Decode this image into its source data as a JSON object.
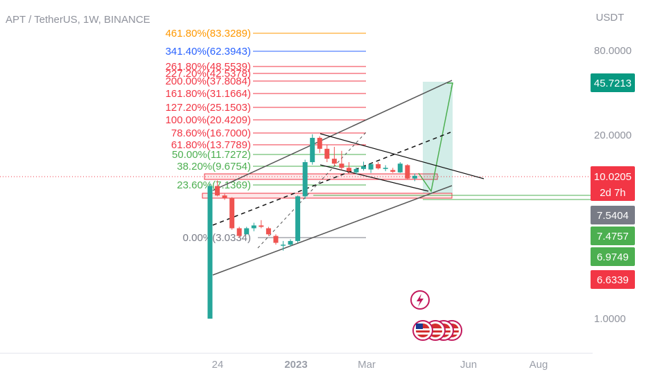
{
  "header": {
    "title": "APT / TetherUS, 1W, BINANCE"
  },
  "y_axis": {
    "currency": "USDT",
    "ticks": [
      {
        "label": "80.0000",
        "value": 80
      },
      {
        "label": "20.0000",
        "value": 20
      },
      {
        "label": "1.0000",
        "value": 1
      }
    ]
  },
  "x_axis": {
    "labels": [
      "24",
      "2023",
      "Mar",
      "Jun",
      "Aug"
    ]
  },
  "price_badges": [
    {
      "label": "45.7213",
      "color": "#089981"
    },
    {
      "label": "10.0205",
      "sublabel": "2d 7h",
      "color": "#f23645"
    },
    {
      "label": "7.5404",
      "color": "#787b86"
    },
    {
      "label": "7.4757",
      "color": "#4caf50"
    },
    {
      "label": "6.9749",
      "color": "#4caf50"
    },
    {
      "label": "6.6339",
      "color": "#f23645"
    }
  ],
  "fibonacci": [
    {
      "label": "461.80%(83.3289)",
      "color": "#ff9800"
    },
    {
      "label": "341.40%(62.3943)",
      "color": "#2962ff"
    },
    {
      "label": "261.80%(48.5539)",
      "color": "#f23645"
    },
    {
      "label": "227.20%(42.5378)",
      "color": "#f23645"
    },
    {
      "label": "200.00%(37.8084)",
      "color": "#f23645"
    },
    {
      "label": "161.80%(31.1664)",
      "color": "#f23645"
    },
    {
      "label": "127.20%(25.1503)",
      "color": "#f23645"
    },
    {
      "label": "100.00%(20.4209)",
      "color": "#f23645"
    },
    {
      "label": "78.60%(16.7000)",
      "color": "#f23645"
    },
    {
      "label": "61.80%(13.7789)",
      "color": "#f23645"
    },
    {
      "label": "50.00%(11.7272)",
      "color": "#4caf50"
    },
    {
      "label": "38.20%(9.6754)",
      "color": "#4caf50"
    },
    {
      "label": "23.60%(7.1369)",
      "color": "#4caf50"
    },
    {
      "label": "0.00%(3.0334)",
      "color": "#787b86"
    }
  ],
  "colors": {
    "up": "#26a69a",
    "down": "#ef5350",
    "grid": "#f0f3fa"
  },
  "chart_data": {
    "type": "candlestick",
    "title": "APT / TetherUS, 1W, BINANCE",
    "ylabel": "USDT",
    "log_scale": true,
    "candles": [
      {
        "o": 1.0,
        "h": 8.9,
        "l": 1.0,
        "c": 8.5
      },
      {
        "o": 8.5,
        "h": 9.3,
        "l": 7.2,
        "c": 7.3
      },
      {
        "o": 7.3,
        "h": 7.5,
        "l": 6.8,
        "c": 7.0
      },
      {
        "o": 7.0,
        "h": 7.1,
        "l": 4.2,
        "c": 4.3
      },
      {
        "o": 4.3,
        "h": 4.4,
        "l": 3.7,
        "c": 3.8
      },
      {
        "o": 3.9,
        "h": 4.4,
        "l": 3.9,
        "c": 4.3
      },
      {
        "o": 4.3,
        "h": 4.7,
        "l": 4.1,
        "c": 4.5
      },
      {
        "o": 4.5,
        "h": 4.9,
        "l": 4.3,
        "c": 4.4
      },
      {
        "o": 4.3,
        "h": 4.4,
        "l": 3.8,
        "c": 3.9
      },
      {
        "o": 3.8,
        "h": 3.9,
        "l": 3.3,
        "c": 3.4
      },
      {
        "o": 3.3,
        "h": 3.5,
        "l": 3.0,
        "c": 3.3
      },
      {
        "o": 3.3,
        "h": 3.6,
        "l": 3.2,
        "c": 3.5
      },
      {
        "o": 3.5,
        "h": 7.3,
        "l": 3.4,
        "c": 7.2
      },
      {
        "o": 7.2,
        "h": 13.0,
        "l": 6.9,
        "c": 12.5
      },
      {
        "o": 12.5,
        "h": 19.6,
        "l": 12.0,
        "c": 18.5
      },
      {
        "o": 18.5,
        "h": 19.0,
        "l": 14.5,
        "c": 15.5
      },
      {
        "o": 15.5,
        "h": 16.5,
        "l": 12.5,
        "c": 13.2
      },
      {
        "o": 13.2,
        "h": 16.0,
        "l": 11.8,
        "c": 12.2
      },
      {
        "o": 12.2,
        "h": 15.0,
        "l": 11.0,
        "c": 11.4
      },
      {
        "o": 11.4,
        "h": 12.5,
        "l": 10.3,
        "c": 10.8
      },
      {
        "o": 10.6,
        "h": 11.5,
        "l": 10.3,
        "c": 11.2
      },
      {
        "o": 11.2,
        "h": 12.6,
        "l": 10.9,
        "c": 11.7
      },
      {
        "o": 11.1,
        "h": 12.3,
        "l": 10.5,
        "c": 12.1
      },
      {
        "o": 12.1,
        "h": 12.5,
        "l": 11.1,
        "c": 11.3
      },
      {
        "o": 11.2,
        "h": 11.9,
        "l": 10.8,
        "c": 11.4
      },
      {
        "o": 11.0,
        "h": 11.4,
        "l": 10.5,
        "c": 10.7
      },
      {
        "o": 10.6,
        "h": 12.5,
        "l": 10.5,
        "c": 12.2
      },
      {
        "o": 11.9,
        "h": 12.1,
        "l": 9.4,
        "c": 9.6
      },
      {
        "o": 9.6,
        "h": 10.4,
        "l": 9.2,
        "c": 10.02
      }
    ]
  }
}
